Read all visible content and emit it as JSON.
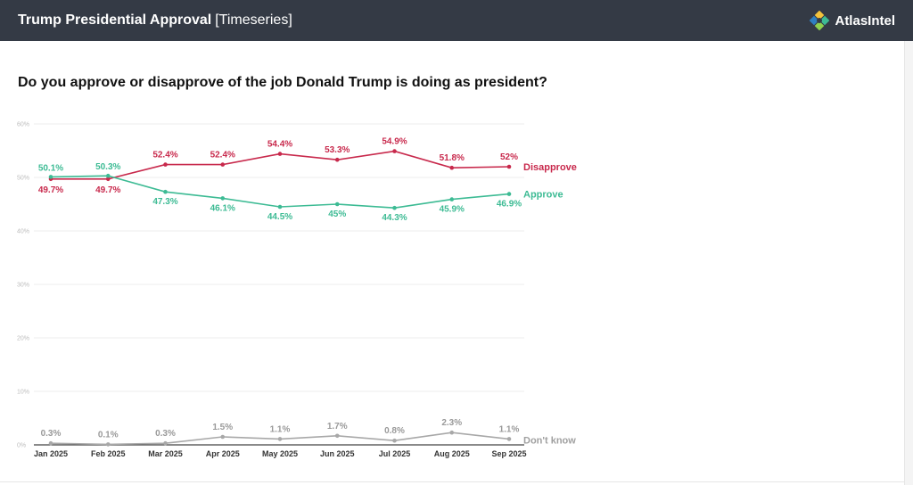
{
  "header": {
    "title": "Trump Presidential Approval",
    "subtitle": "[Timeseries]",
    "brand": "AtlasIntel"
  },
  "colors": {
    "disapprove": "#c8294c",
    "approve": "#3dbb94",
    "dont_know": "#a8a8a8",
    "header_bg": "#343a45"
  },
  "chart_data": {
    "type": "line",
    "title": "Do you approve or disapprove of the job Donald Trump is doing as president?",
    "xlabel": "",
    "ylabel": "",
    "ylim": [
      0,
      60
    ],
    "yticks": [
      "0%",
      "10%",
      "20%",
      "30%",
      "40%",
      "50%",
      "60%"
    ],
    "grid": true,
    "categories": [
      "Jan 2025",
      "Feb 2025",
      "Mar 2025",
      "Apr 2025",
      "May 2025",
      "Jun 2025",
      "Jul 2025",
      "Aug 2025",
      "Sep 2025"
    ],
    "series": [
      {
        "name": "Disapprove",
        "key": "disapprove",
        "values": [
          49.7,
          49.7,
          52.4,
          52.4,
          54.4,
          53.3,
          54.9,
          51.8,
          52
        ],
        "labels": [
          "49.7%",
          "49.7%",
          "52.4%",
          "52.4%",
          "54.4%",
          "53.3%",
          "54.9%",
          "51.8%",
          "52%"
        ]
      },
      {
        "name": "Approve",
        "key": "approve",
        "values": [
          50.1,
          50.3,
          47.3,
          46.1,
          44.5,
          45,
          44.3,
          45.9,
          46.9
        ],
        "labels": [
          "50.1%",
          "50.3%",
          "47.3%",
          "46.1%",
          "44.5%",
          "45%",
          "44.3%",
          "45.9%",
          "46.9%"
        ]
      },
      {
        "name": "Don't know",
        "key": "dont_know",
        "values": [
          0.3,
          0.1,
          0.3,
          1.5,
          1.1,
          1.7,
          0.8,
          2.3,
          1.1
        ],
        "labels": [
          "0.3%",
          "0.1%",
          "0.3%",
          "1.5%",
          "1.1%",
          "1.7%",
          "0.8%",
          "2.3%",
          "1.1%"
        ]
      }
    ]
  }
}
